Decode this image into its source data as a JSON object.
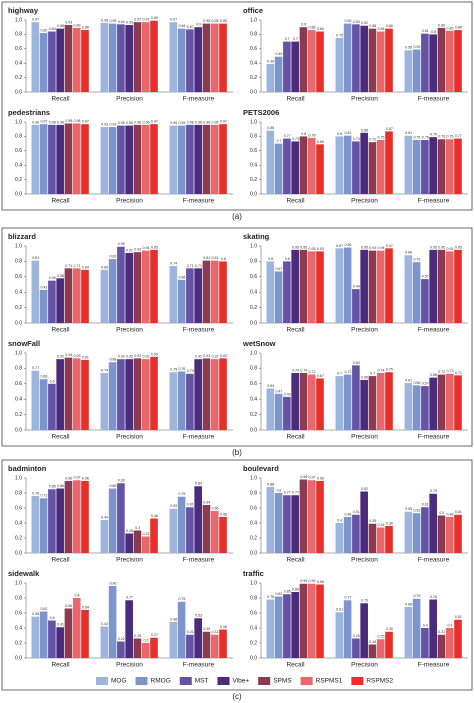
{
  "panel_labels": [
    "(a)",
    "(b)",
    "(c)"
  ],
  "legend": [
    {
      "name": "MOG",
      "color": "#9db4dc"
    },
    {
      "name": "RMOG",
      "color": "#7d94cc"
    },
    {
      "name": "MST",
      "color": "#6553a6"
    },
    {
      "name": "Vibe+",
      "color": "#4a2b7c"
    },
    {
      "name": "SPMS",
      "color": "#8c3a50"
    },
    {
      "name": "RSPMS1",
      "color": "#ea656c"
    },
    {
      "name": "RSPMS2",
      "color": "#e8302a"
    }
  ],
  "chart_data": [
    {
      "type": "bar",
      "title": "highway",
      "categories": [
        "Recall",
        "Precision",
        "F-measure"
      ],
      "ylim": [
        0,
        1
      ],
      "yticks": [
        {
          "value": 0,
          "label": "0.0"
        },
        0.2,
        0.4,
        0.6,
        0.8,
        {
          "value": 1,
          "label": "1.0"
        }
      ],
      "series": [
        {
          "values": [
            0.97,
            0.96,
            0.97
          ]
        },
        {
          "values": [
            0.82,
            0.95,
            0.88
          ]
        },
        {
          "values": [
            0.84,
            0.94,
            0.87
          ]
        },
        {
          "values": [
            0.88,
            0.93,
            0.9
          ]
        },
        {
          "values": [
            0.93,
            0.97,
            0.95
          ]
        },
        {
          "values": [
            0.89,
            0.97,
            0.95
          ]
        },
        {
          "values": [
            0.86,
            0.99,
            0.95
          ]
        }
      ]
    },
    {
      "type": "bar",
      "title": "office",
      "categories": [
        "Recall",
        "Precision",
        "F-measure"
      ],
      "ylim": [
        0,
        1
      ],
      "yticks": [
        {
          "value": 0,
          "label": "0.0"
        },
        0.2,
        0.4,
        0.6,
        0.8,
        {
          "value": 1,
          "label": "1.0"
        }
      ],
      "series": [
        {
          "values": [
            0.39,
            0.75,
            0.58
          ]
        },
        {
          "values": [
            0.49,
            0.95,
            0.59
          ]
        },
        {
          "values": [
            0.7,
            0.94,
            0.81
          ]
        },
        {
          "values": [
            0.7,
            0.92,
            0.8
          ]
        },
        {
          "values": [
            0.9,
            0.88,
            0.89
          ]
        },
        {
          "values": [
            0.86,
            0.84,
            0.85
          ]
        },
        {
          "values": [
            0.84,
            0.88,
            0.86
          ]
        }
      ]
    },
    {
      "type": "bar",
      "title": "pedestrians",
      "categories": [
        "Recall",
        "Precision",
        "F-measure"
      ],
      "ylim": [
        0,
        1
      ],
      "yticks": [
        {
          "value": 0,
          "label": "0.0"
        },
        0.2,
        0.4,
        0.6,
        0.8,
        {
          "value": 1,
          "label": "1.0"
        }
      ],
      "series": [
        {
          "values": [
            0.96,
            0.93,
            0.95
          ]
        },
        {
          "values": [
            0.97,
            0.93,
            0.95
          ]
        },
        {
          "values": [
            0.96,
            0.95,
            0.96
          ]
        },
        {
          "values": [
            0.96,
            0.95,
            0.96
          ]
        },
        {
          "values": [
            0.98,
            0.96,
            0.96
          ]
        },
        {
          "values": [
            0.98,
            0.96,
            0.96
          ]
        },
        {
          "values": [
            0.97,
            0.97,
            0.97
          ]
        }
      ]
    },
    {
      "type": "bar",
      "title": "PETS2006",
      "categories": [
        "Recall",
        "Precision",
        "F-measure"
      ],
      "ylim": [
        0,
        1
      ],
      "yticks": [
        {
          "value": 0,
          "label": "0.0"
        },
        0.2,
        0.4,
        0.6,
        0.8,
        {
          "value": 1,
          "label": "1.0"
        }
      ],
      "series": [
        {
          "values": [
            0.88,
            0.8,
            0.81
          ]
        },
        {
          "values": [
            0.7,
            0.81,
            0.75
          ]
        },
        {
          "values": [
            0.77,
            0.73,
            0.75
          ]
        },
        {
          "values": [
            0.73,
            0.85,
            0.79
          ]
        },
        {
          "values": [
            0.8,
            0.72,
            0.76
          ]
        },
        {
          "values": [
            0.78,
            0.75,
            0.76
          ]
        },
        {
          "values": [
            0.69,
            0.87,
            0.77
          ]
        }
      ]
    },
    {
      "type": "bar",
      "title": "blizzard",
      "categories": [
        "Recall",
        "Precision",
        "F-measure"
      ],
      "ylim": [
        0,
        1
      ],
      "yticks": [
        {
          "value": 0,
          "label": "0.0"
        },
        0.2,
        0.4,
        0.6,
        0.8,
        {
          "value": 1,
          "label": "1.0"
        }
      ],
      "series": [
        {
          "values": [
            0.81,
            0.69,
            0.74
          ]
        },
        {
          "values": [
            0.43,
            0.83,
            0.56
          ]
        },
        {
          "values": [
            0.55,
            0.99,
            0.71
          ]
        },
        {
          "values": [
            0.58,
            0.91,
            0.71
          ]
        },
        {
          "values": [
            0.71,
            0.92,
            0.81
          ]
        },
        {
          "values": [
            0.71,
            0.94,
            0.81
          ]
        },
        {
          "values": [
            0.69,
            0.95,
            0.8
          ]
        }
      ]
    },
    {
      "type": "bar",
      "title": "skating",
      "categories": [
        "Recall",
        "Precision",
        "F-measure"
      ],
      "ylim": [
        0,
        1
      ],
      "yticks": [
        {
          "value": 0,
          "label": "0.0"
        },
        0.2,
        0.4,
        0.6,
        0.8,
        {
          "value": 1,
          "label": "1.0"
        }
      ],
      "series": [
        {
          "values": [
            0.8,
            0.97,
            0.88
          ]
        },
        {
          "values": [
            0.67,
            0.98,
            0.79
          ]
        },
        {
          "values": [
            0.8,
            0.44,
            0.57
          ]
        },
        {
          "values": [
            0.95,
            0.95,
            0.95
          ]
        },
        {
          "values": [
            0.95,
            0.94,
            0.95
          ]
        },
        {
          "values": [
            0.93,
            0.94,
            0.93
          ]
        },
        {
          "values": [
            0.93,
            0.97,
            0.95
          ]
        }
      ]
    },
    {
      "type": "bar",
      "title": "snowFall",
      "categories": [
        "Recall",
        "Precision",
        "F-measure"
      ],
      "ylim": [
        0,
        1
      ],
      "yticks": [
        {
          "value": 0,
          "label": "0.0"
        },
        0.2,
        0.4,
        0.6,
        0.8,
        {
          "value": 1,
          "label": "1.0"
        }
      ],
      "series": [
        {
          "values": [
            0.77,
            0.74,
            0.75
          ]
        },
        {
          "values": [
            0.66,
            0.88,
            0.76
          ]
        },
        {
          "values": [
            0.6,
            0.92,
            0.73
          ]
        },
        {
          "values": [
            0.92,
            0.92,
            0.92
          ]
        },
        {
          "values": [
            0.94,
            0.93,
            0.93
          ]
        },
        {
          "values": [
            0.93,
            0.92,
            0.92
          ]
        },
        {
          "values": [
            0.91,
            0.95,
            0.93
          ]
        }
      ]
    },
    {
      "type": "bar",
      "title": "wetSnow",
      "categories": [
        "Recall",
        "Precision",
        "F-measure"
      ],
      "ylim": [
        0,
        1
      ],
      "yticks": [
        {
          "value": 0,
          "label": "0.0"
        },
        0.2,
        0.4,
        0.6,
        0.8,
        {
          "value": 1,
          "label": "1.0"
        }
      ],
      "series": [
        {
          "values": [
            0.54,
            0.7,
            0.61
          ]
        },
        {
          "values": [
            0.47,
            0.72,
            0.58
          ]
        },
        {
          "values": [
            0.43,
            0.84,
            0.57
          ]
        },
        {
          "values": [
            0.74,
            0.65,
            0.68
          ]
        },
        {
          "values": [
            0.74,
            0.7,
            0.72
          ]
        },
        {
          "values": [
            0.72,
            0.74,
            0.73
          ]
        },
        {
          "values": [
            0.67,
            0.75,
            0.71
          ]
        }
      ]
    },
    {
      "type": "bar",
      "title": "badminton",
      "categories": [
        "Recall",
        "Precision",
        "F-measure"
      ],
      "ylim": [
        0,
        1
      ],
      "yticks": [
        {
          "value": 0,
          "label": "0.0"
        },
        0.2,
        0.4,
        0.6,
        0.8,
        {
          "value": 1,
          "label": "1.0"
        }
      ],
      "series": [
        {
          "values": [
            0.76,
            0.44,
            0.59
          ]
        },
        {
          "values": [
            0.73,
            0.86,
            0.75
          ]
        },
        {
          "values": [
            0.85,
            0.93,
            0.61
          ]
        },
        {
          "values": [
            0.86,
            0.26,
            0.89
          ]
        },
        {
          "values": [
            0.96,
            0.3,
            0.64
          ]
        },
        {
          "values": [
            0.97,
            0.22,
            0.56
          ]
        },
        {
          "values": [
            0.96,
            0.46,
            0.48
          ]
        }
      ]
    },
    {
      "type": "bar",
      "title": "boulevard",
      "categories": [
        "Recall",
        "Precision",
        "F-measure"
      ],
      "ylim": [
        0,
        1
      ],
      "yticks": [
        {
          "value": 0,
          "label": "0.0"
        },
        0.2,
        0.4,
        0.6,
        0.8,
        {
          "value": 1,
          "label": "1.0"
        }
      ],
      "series": [
        {
          "values": [
            0.88,
            0.4,
            0.55
          ]
        },
        {
          "values": [
            0.8,
            0.48,
            0.53
          ]
        },
        {
          "values": [
            0.77,
            0.51,
            0.61
          ]
        },
        {
          "values": [
            0.77,
            0.82,
            0.79
          ]
        },
        {
          "values": [
            0.98,
            0.39,
            0.5
          ]
        },
        {
          "values": [
            0.97,
            0.34,
            0.48
          ]
        },
        {
          "values": [
            0.96,
            0.36,
            0.51
          ]
        }
      ]
    },
    {
      "type": "bar",
      "title": "sidewalk",
      "categories": [
        "Recall",
        "Precision",
        "F-measure"
      ],
      "ylim": [
        0,
        1
      ],
      "yticks": [
        {
          "value": 0,
          "label": "0.0"
        },
        0.2,
        0.4,
        0.6,
        0.8,
        {
          "value": 1,
          "label": "1.0"
        }
      ],
      "series": [
        {
          "values": [
            0.55,
            0.42,
            0.48
          ]
        },
        {
          "values": [
            0.62,
            0.96,
            0.75
          ]
        },
        {
          "values": [
            0.5,
            0.22,
            0.31
          ]
        },
        {
          "values": [
            0.41,
            0.77,
            0.53
          ]
        },
        {
          "values": [
            0.66,
            0.26,
            0.35
          ]
        },
        {
          "values": [
            0.8,
            0.2,
            0.31
          ]
        },
        {
          "values": [
            0.64,
            0.27,
            0.38
          ]
        }
      ]
    },
    {
      "type": "bar",
      "title": "traffic",
      "categories": [
        "Recall",
        "Precision",
        "F-measure"
      ],
      "ylim": [
        0,
        1
      ],
      "yticks": [
        {
          "value": 0,
          "label": "0.0"
        },
        0.2,
        0.4,
        0.6,
        0.8,
        {
          "value": 1,
          "label": "1.0"
        }
      ],
      "series": [
        {
          "values": [
            0.78,
            0.61,
            0.68
          ]
        },
        {
          "values": [
            0.82,
            0.77,
            0.79
          ]
        },
        {
          "values": [
            0.85,
            0.26,
            0.4
          ]
        },
        {
          "values": [
            0.88,
            0.73,
            0.78
          ]
        },
        {
          "values": [
            0.99,
            0.18,
            0.31
          ]
        },
        {
          "values": [
            0.99,
            0.25,
            0.4
          ]
        },
        {
          "values": [
            0.98,
            0.35,
            0.51
          ]
        }
      ]
    }
  ]
}
